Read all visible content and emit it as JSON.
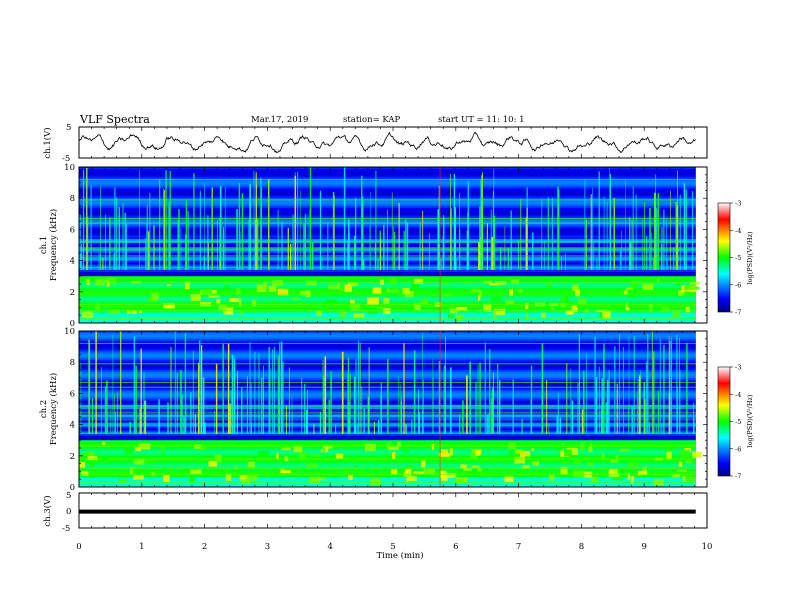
{
  "header": {
    "title": "VLF Spectra",
    "date": "Mar.17, 2019",
    "station": "station= KAP",
    "start": "start  UT =   11: 10: 1"
  },
  "chart_data": [
    {
      "type": "line",
      "panel": "ch1-waveform",
      "ylabel": "ch.1(V)",
      "ylim": [
        -5,
        5
      ],
      "yticks": [
        "5",
        "-5"
      ],
      "xlim": [
        0,
        10
      ],
      "x_end": 9.82
    },
    {
      "type": "heatmap",
      "panel": "ch1-spectrogram",
      "ylabel_top": "ch.1",
      "ylabel": "Frequency (kHz)",
      "ylim": [
        0,
        10
      ],
      "yticks": [
        "0",
        "2",
        "4",
        "6",
        "8",
        "10"
      ],
      "xlim": [
        0,
        10
      ],
      "x_end": 9.82,
      "colorbar": {
        "label": "log(PSD)(V²/Hz)",
        "range": [
          -7,
          -3
        ],
        "ticks": [
          "-3",
          "-4",
          "-5",
          "-6",
          "-7"
        ]
      }
    },
    {
      "type": "heatmap",
      "panel": "ch2-spectrogram",
      "ylabel_top": "ch.2",
      "ylabel": "Frequency (kHz)",
      "ylim": [
        0,
        10
      ],
      "yticks": [
        "0",
        "2",
        "4",
        "6",
        "8",
        "10"
      ],
      "xlim": [
        0,
        10
      ],
      "x_end": 9.82,
      "colorbar": {
        "label": "log(PSD)(V²/Hz)",
        "range": [
          -7,
          -3
        ],
        "ticks": [
          "-3",
          "-4",
          "-5",
          "-6",
          "-7"
        ]
      }
    },
    {
      "type": "line",
      "panel": "ch3-waveform",
      "ylabel": "ch.3(V)",
      "ylim": [
        -5,
        5
      ],
      "yticks": [
        "5",
        "0",
        "-5"
      ],
      "xlim": [
        0,
        10
      ],
      "constant_value": -0.3
    }
  ],
  "xaxis": {
    "label": "Time (min)",
    "ticks": [
      "0",
      "1",
      "2",
      "3",
      "4",
      "5",
      "6",
      "7",
      "8",
      "9",
      "10"
    ]
  },
  "colors": {
    "waveform": "#000000",
    "colormap": [
      "#000080",
      "#0000ff",
      "#00ffff",
      "#00ff00",
      "#ffff00",
      "#ff0000",
      "#ffffff"
    ]
  }
}
